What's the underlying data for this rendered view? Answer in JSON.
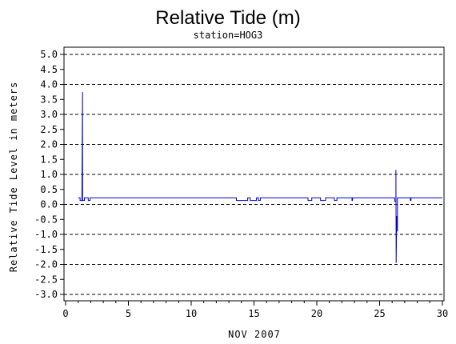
{
  "chart_data": {
    "type": "line",
    "title": "Relative Tide (m)",
    "subtitle": "station=HOG3",
    "xlabel": "NOV 2007",
    "ylabel": "Relative Tide Level in meters",
    "xlim": [
      0,
      30
    ],
    "ylim": [
      -3.0,
      5.0
    ],
    "xticks": [
      0,
      5,
      10,
      15,
      20,
      25,
      30
    ],
    "xtick_labels": [
      "0",
      "5",
      "10",
      "15",
      "20",
      "25",
      "30"
    ],
    "yticks": [
      5.0,
      4.5,
      4.0,
      3.5,
      3.0,
      2.5,
      2.0,
      1.5,
      1.0,
      0.5,
      0.0,
      -0.5,
      -1.0,
      -1.5,
      -2.0,
      -2.5,
      -3.0
    ],
    "ytick_labels": [
      "5.0",
      "4.5",
      "4.0",
      "3.5",
      "3.0",
      "2.5",
      "2.0",
      "1.5",
      "1.0",
      "0.5",
      "0.0",
      "-0.5",
      "-1.0",
      "-1.5",
      "-2.0",
      "-2.5",
      "-3.0"
    ],
    "gridlines_y": [
      -3.0,
      -2.0,
      -1.0,
      0.0,
      1.0,
      2.0,
      3.0,
      4.0,
      5.0
    ],
    "grid_style": "dashed",
    "line_color": "#0000cc",
    "series": [
      {
        "x": [
          1.0,
          1.15,
          1.15,
          1.3,
          1.35,
          1.35,
          1.5,
          1.5,
          1.8,
          1.8,
          1.95,
          1.95,
          13.6,
          13.6,
          14.5,
          14.5,
          14.7,
          14.7,
          15.2,
          15.2,
          15.35,
          15.35,
          15.5,
          15.5,
          15.6,
          15.6,
          19.3,
          19.3,
          19.6,
          19.6,
          20.3,
          20.3,
          20.7,
          20.7,
          21.4,
          21.4,
          21.6,
          21.6,
          22.8,
          22.8,
          22.85,
          22.85,
          26.2,
          26.2,
          26.3,
          26.3,
          26.32,
          26.35,
          26.35,
          26.4,
          26.42,
          26.42,
          26.5,
          26.5,
          27.45,
          27.45,
          27.5,
          27.5,
          30.0
        ],
        "y": [
          0.22,
          0.22,
          0.13,
          0.13,
          3.75,
          0.13,
          0.13,
          0.22,
          0.22,
          0.13,
          0.13,
          0.22,
          0.22,
          0.13,
          0.13,
          0.22,
          0.22,
          0.13,
          0.13,
          0.22,
          0.22,
          0.13,
          0.13,
          0.22,
          0.22,
          0.22,
          0.22,
          0.13,
          0.13,
          0.22,
          0.22,
          0.13,
          0.13,
          0.22,
          0.22,
          0.13,
          0.13,
          0.22,
          0.22,
          0.13,
          0.13,
          0.22,
          0.22,
          0.1,
          0.1,
          1.15,
          -1.95,
          -0.9,
          -0.4,
          -0.4,
          -0.9,
          0.22,
          0.22,
          0.22,
          0.22,
          0.13,
          0.13,
          0.22,
          0.22
        ]
      }
    ]
  }
}
